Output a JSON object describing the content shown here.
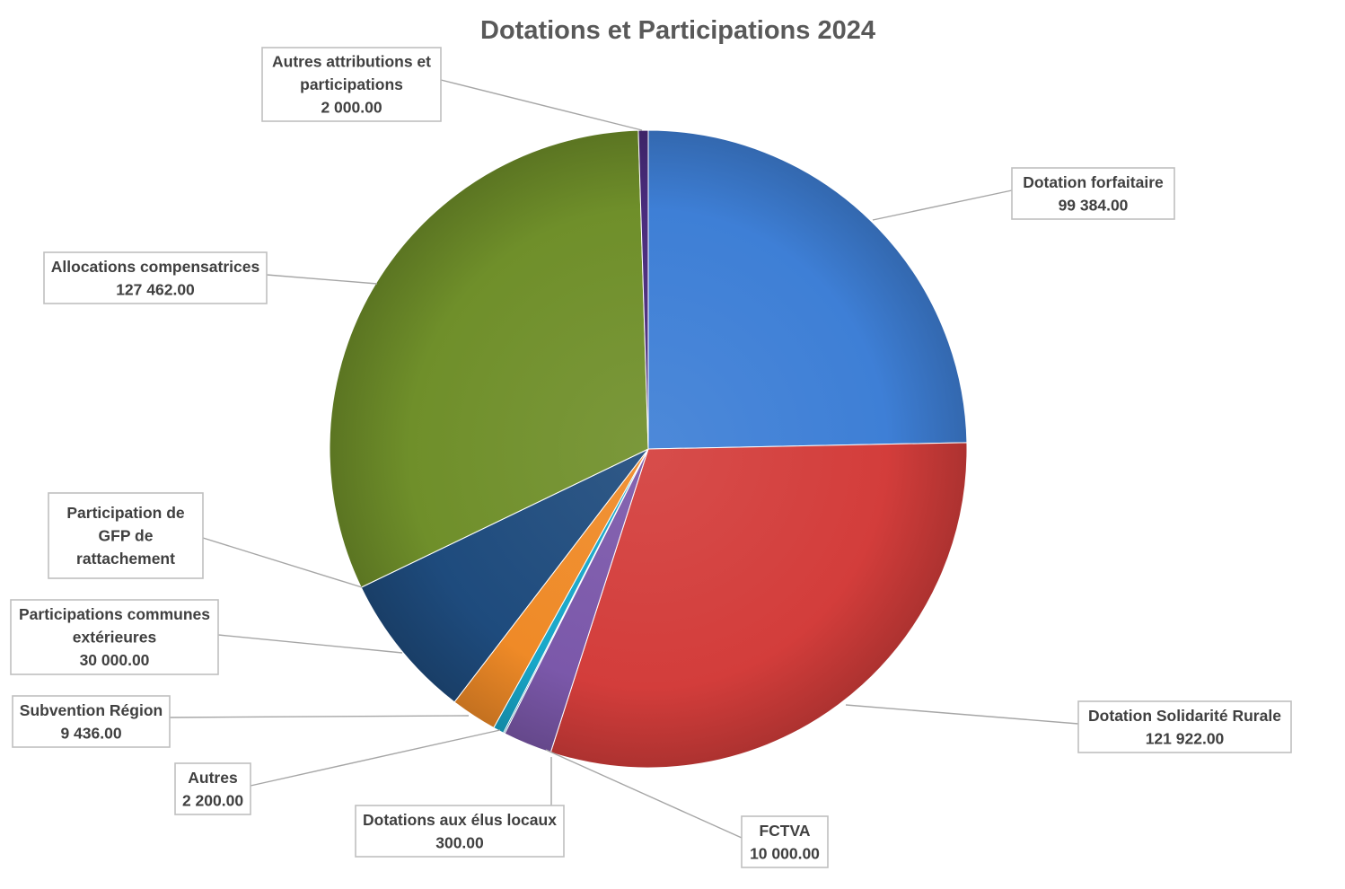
{
  "chart_data": {
    "type": "pie",
    "title": "Dotations et Participations 2024",
    "slices": [
      {
        "label_lines": [
          "Dotation forfaitaire"
        ],
        "value_text": "99 384.00",
        "value": 99384.0,
        "color": "#3e7fd6"
      },
      {
        "label_lines": [
          "Dotation Solidarité Rurale"
        ],
        "value_text": "121 922.00",
        "value": 121922.0,
        "color": "#d33d3b"
      },
      {
        "label_lines": [
          "FCTVA"
        ],
        "value_text": "10 000.00",
        "value": 10000.0,
        "color": "#7b58aa"
      },
      {
        "label_lines": [
          "Dotations aux élus locaux"
        ],
        "value_text": "300.00",
        "value": 300.0,
        "color": "#2f8fb8"
      },
      {
        "label_lines": [
          "Autres"
        ],
        "value_text": "2 200.00",
        "value": 2200.0,
        "color": "#18a7c9"
      },
      {
        "label_lines": [
          "Subvention Région"
        ],
        "value_text": "9 436.00",
        "value": 9436.0,
        "color": "#ef8a27"
      },
      {
        "label_lines": [
          "Participations communes",
          "extérieures"
        ],
        "value_text": "30 000.00",
        "value": 30000.0,
        "color": "#1e4b7d"
      },
      {
        "label_lines": [
          "Participation de",
          "GFP de",
          "rattachement"
        ],
        "value_text": "",
        "value": 0,
        "color": "#a9c2e3"
      },
      {
        "label_lines": [
          "Allocations compensatrices"
        ],
        "value_text": "127 462.00",
        "value": 127462.0,
        "color": "#6f8f2a"
      },
      {
        "label_lines": [
          "Autres attributions et",
          "participations"
        ],
        "value_text": "2 000.00",
        "value": 2000.0,
        "color": "#4a2c7d"
      }
    ]
  }
}
